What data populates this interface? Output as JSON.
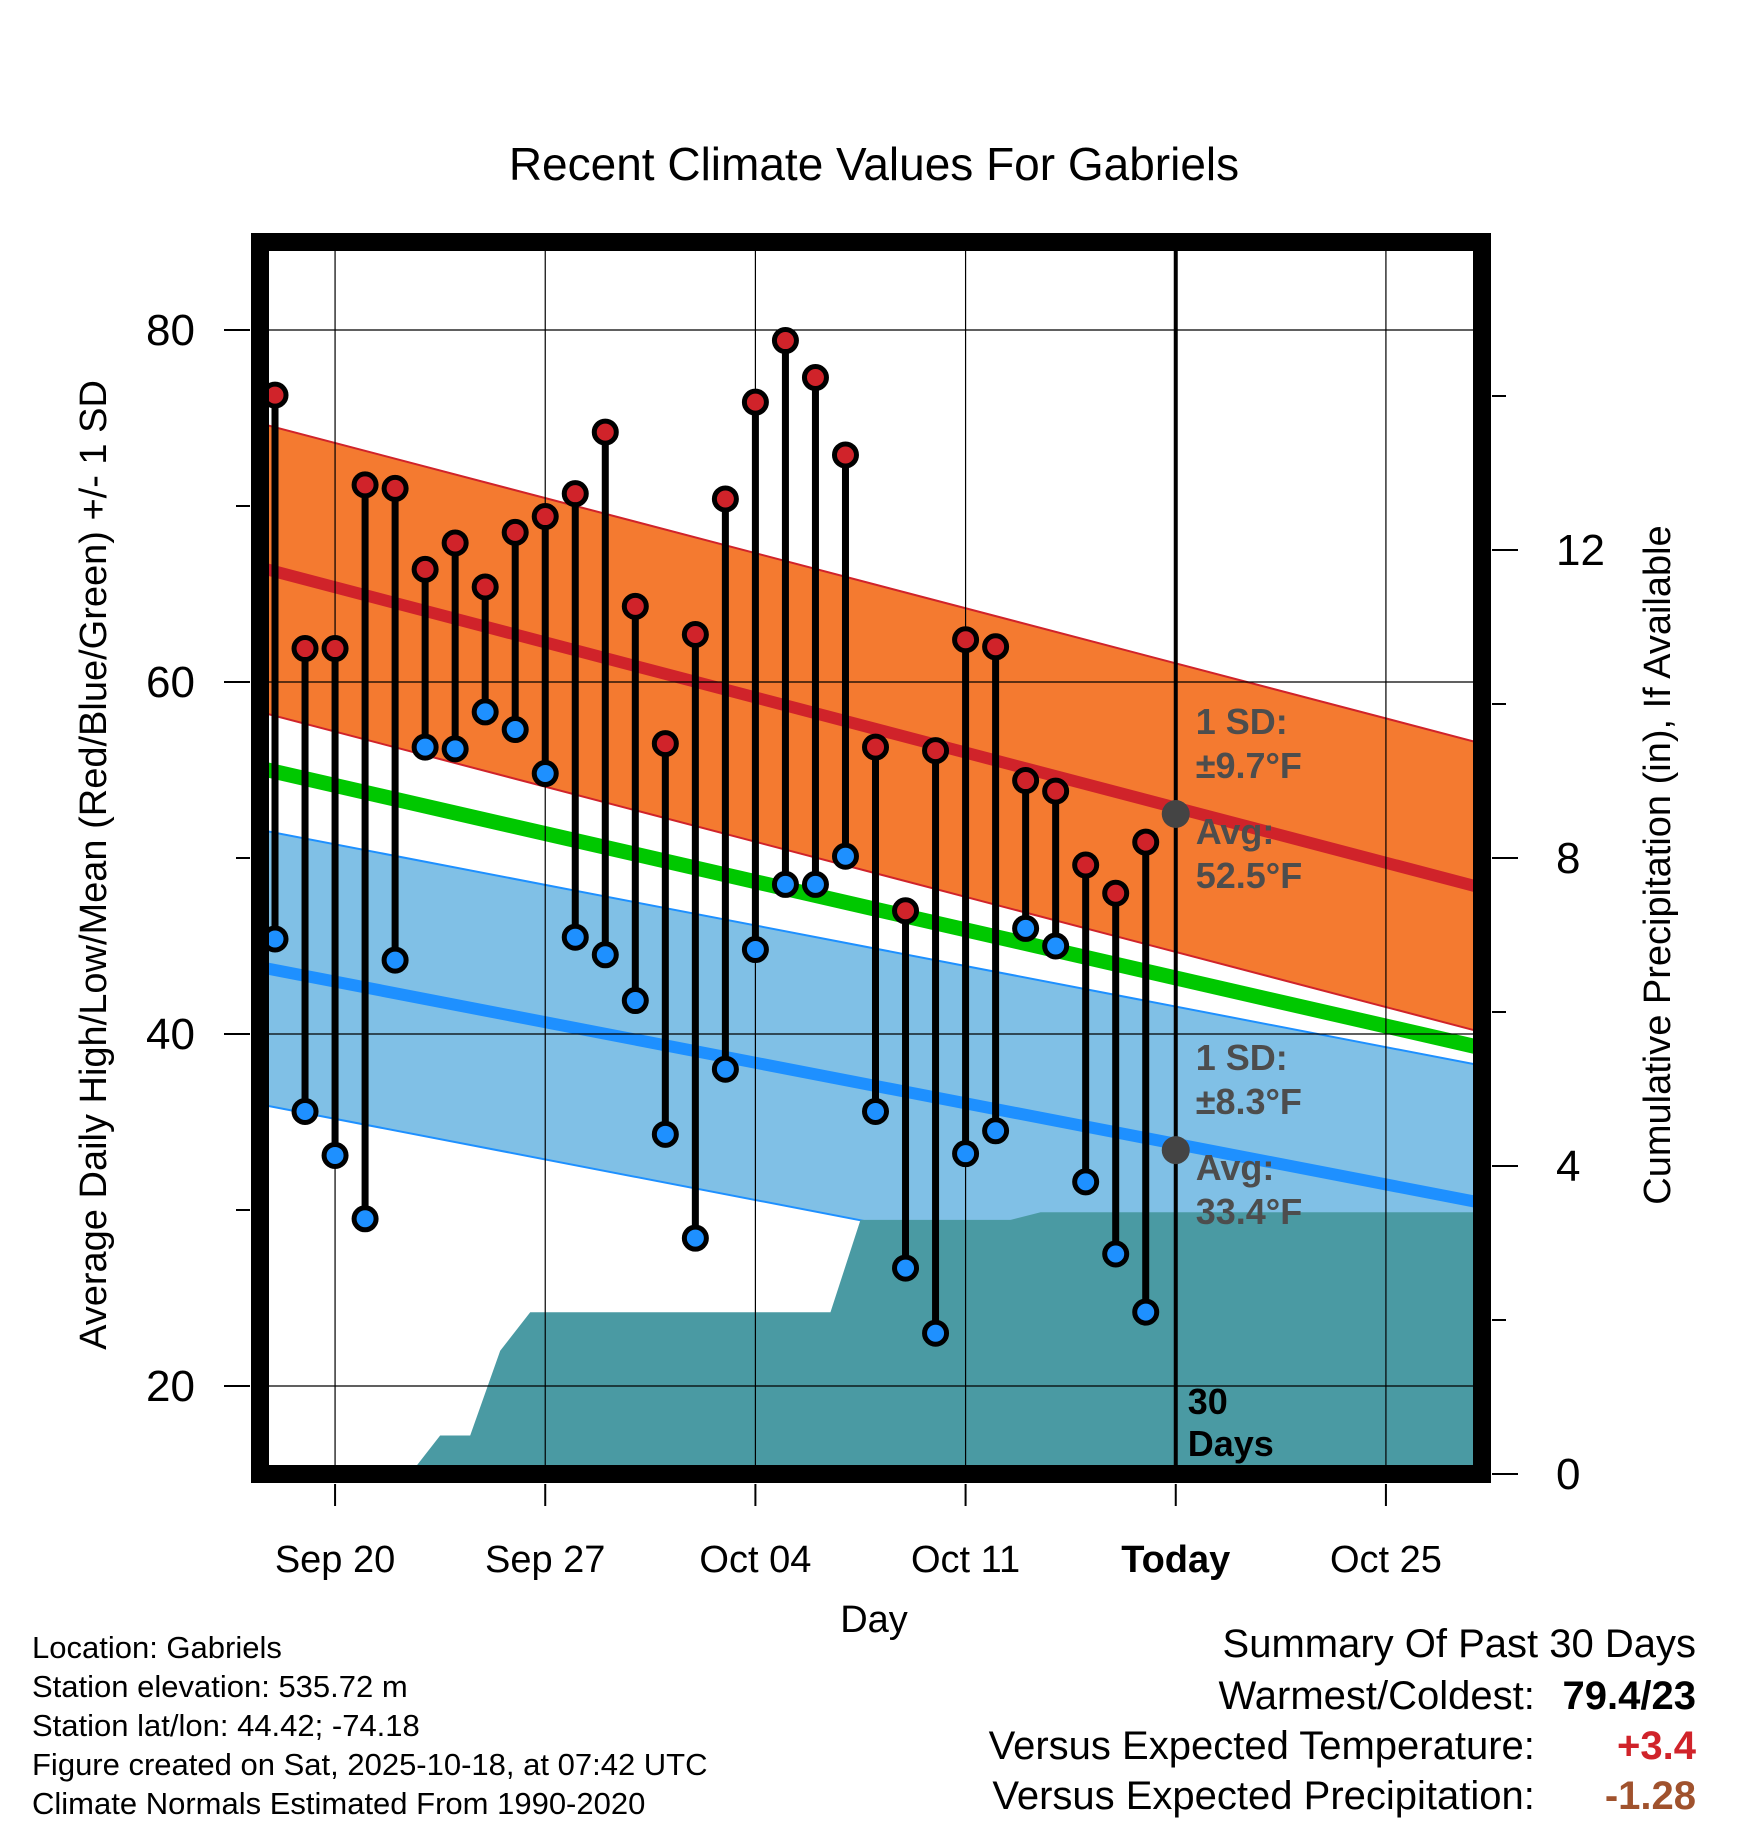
{
  "chart_data": {
    "type": "line",
    "title": "Recent Climate Values For Gabriels",
    "xlabel": "Day",
    "ylabel": "Average Daily High/Low/Mean (Red/Blue/Green) +/- 1 SD",
    "y2label": "Cumulative Precipitation (in), If Available",
    "ylim": [
      15,
      85
    ],
    "y2lim": [
      0,
      16
    ],
    "yticks": [
      20,
      40,
      60,
      80
    ],
    "y2ticks": [
      0,
      4,
      8,
      12
    ],
    "xlim": [
      -0.5,
      40.2
    ],
    "xticks": [
      {
        "day": 2,
        "label": "Sep 20"
      },
      {
        "day": 9,
        "label": "Sep 27"
      },
      {
        "day": 16,
        "label": "Oct 04"
      },
      {
        "day": 23,
        "label": "Oct 11"
      },
      {
        "day": 30,
        "label": "Today"
      },
      {
        "day": 37,
        "label": "Oct 25"
      }
    ],
    "today_day": 30,
    "days_label": "30 Days",
    "daily_high": [
      76.3,
      61.9,
      61.9,
      71.2,
      71.0,
      66.4,
      67.9,
      65.4,
      68.5,
      69.4,
      70.7,
      74.2,
      64.3,
      56.5,
      62.7,
      70.4,
      75.9,
      79.4,
      77.3,
      72.9,
      56.3,
      47.0,
      56.1,
      62.4,
      62.0,
      54.4,
      53.8,
      49.6,
      48.0,
      50.9
    ],
    "daily_low": [
      45.4,
      35.6,
      33.1,
      29.5,
      44.2,
      56.3,
      56.2,
      58.3,
      57.3,
      54.8,
      45.5,
      44.5,
      41.9,
      34.3,
      28.4,
      38.0,
      44.8,
      48.5,
      48.5,
      50.1,
      35.6,
      26.7,
      23.0,
      33.2,
      34.5,
      46.0,
      45.0,
      31.6,
      27.5,
      24.2
    ],
    "normal_high": {
      "days": [
        -0.5,
        40.2
      ],
      "values": [
        66.5,
        48.3
      ],
      "sd": 8.2
    },
    "normal_low": {
      "days": [
        -0.5,
        40.2
      ],
      "values": [
        43.8,
        30.4
      ],
      "sd": 7.8
    },
    "normal_mean": {
      "days": [
        -0.5,
        40.2
      ],
      "values": [
        55.1,
        39.2
      ]
    },
    "precip_cumulative": {
      "days": [
        4.5,
        5.5,
        6.5,
        7.5,
        8.5,
        18.5,
        19.5,
        24.5,
        25.5,
        26.5,
        40.2
      ],
      "values": [
        0.0,
        0.5,
        0.5,
        1.6,
        2.1,
        2.1,
        3.3,
        3.3,
        3.4,
        3.4,
        3.4
      ]
    },
    "high_avg_marker": {
      "day": 30,
      "value": 52.5
    },
    "low_avg_marker": {
      "day": 30,
      "value": 33.4
    },
    "annotations": {
      "high_sd_line1": "1 SD:",
      "high_sd_line2": "±9.7°F",
      "high_avg_line1": "Avg:",
      "high_avg_line2": "52.5°F",
      "low_sd_line1": "1 SD:",
      "low_sd_line2": "±8.3°F",
      "low_avg_line1": "Avg:",
      "low_avg_line2": "33.4°F"
    },
    "colors": {
      "high_band": "#f47a30",
      "high_line": "#d0232a",
      "mean_line": "#00c800",
      "low_band": "#80c0e6",
      "low_line": "#1e90ff",
      "precip": "#4a9aa3",
      "high_dot": "#d0232a",
      "low_dot": "#1e90ff",
      "avg_marker": "#444444",
      "annotation_text": "#4d4d4d"
    }
  },
  "footer": {
    "location": "Location: Gabriels",
    "elevation": "Station elevation: 535.72 m",
    "latlon": "Station lat/lon: 44.42; -74.18",
    "created": "Figure created on Sat, 2025-10-18, at 07:42 UTC",
    "normals": "Climate Normals Estimated From 1990-2020"
  },
  "summary": {
    "title": "Summary Of Past 30 Days",
    "warmest_label": "Warmest/Coldest:",
    "warmest_value": "79.4/23",
    "temp_label": "Versus Expected Temperature:",
    "temp_value": "+3.4",
    "temp_color": "#d0232a",
    "precip_label": "Versus Expected Precipitation:",
    "precip_value": "-1.28",
    "precip_color": "#a0522d"
  }
}
